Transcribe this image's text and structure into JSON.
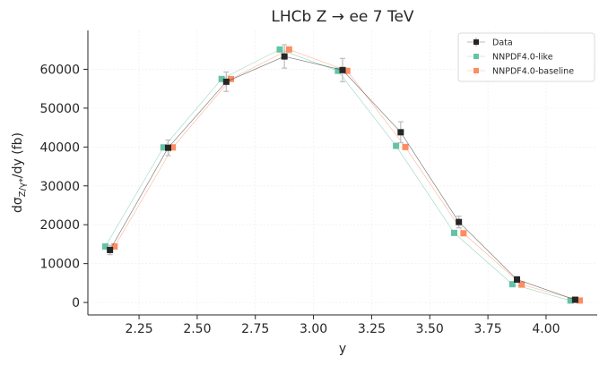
{
  "chart_data": {
    "type": "scatter",
    "title": "LHCb Z → ee 7 TeV",
    "xlabel": "y",
    "ylabel_main": "dσ",
    "ylabel_sub": "Z/γ*",
    "ylabel_rest": "/dy (fb)",
    "xlim": [
      2.03,
      4.22
    ],
    "ylim": [
      -3200,
      70000
    ],
    "xticks": [
      "2.25",
      "2.50",
      "2.75",
      "3.00",
      "3.25",
      "3.50",
      "3.75",
      "4.00"
    ],
    "xtick_values": [
      2.25,
      2.5,
      2.75,
      3.0,
      3.25,
      3.5,
      3.75,
      4.0
    ],
    "yticks": [
      "0",
      "10000",
      "20000",
      "30000",
      "40000",
      "50000",
      "60000"
    ],
    "ytick_values": [
      0,
      10000,
      20000,
      30000,
      40000,
      50000,
      60000
    ],
    "grid": true,
    "legend_position": "top-right",
    "x": [
      2.125,
      2.375,
      2.625,
      2.875,
      3.125,
      3.375,
      3.625,
      3.875,
      4.125
    ],
    "series": [
      {
        "name": "Data",
        "color": "#262626",
        "x_offset": 0.0,
        "values": [
          13500,
          39800,
          56800,
          63300,
          59800,
          43800,
          20700,
          5900,
          700
        ],
        "errors": [
          1200,
          2000,
          2500,
          3000,
          3000,
          2700,
          1500,
          800,
          200
        ]
      },
      {
        "name": "NNPDF4.0-like",
        "color": "#66c2a5",
        "x_offset": -0.02,
        "values": [
          14400,
          39900,
          57500,
          65100,
          59600,
          40300,
          17900,
          4700,
          500
        ]
      },
      {
        "name": "NNPDF4.0-baseline",
        "color": "#fc8d62",
        "x_offset": 0.02,
        "values": [
          14400,
          39900,
          57500,
          65100,
          59600,
          40000,
          17800,
          4600,
          500
        ]
      }
    ]
  }
}
